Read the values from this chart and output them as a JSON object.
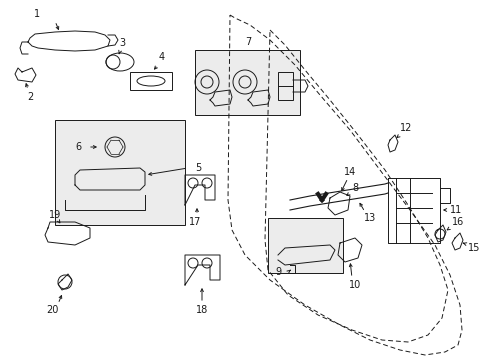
{
  "bg_color": "#ffffff",
  "lc": "#1a1a1a",
  "lw": 0.7,
  "figsize": [
    4.89,
    3.6
  ],
  "dpi": 100,
  "xlim": [
    0,
    489
  ],
  "ylim": [
    0,
    360
  ]
}
